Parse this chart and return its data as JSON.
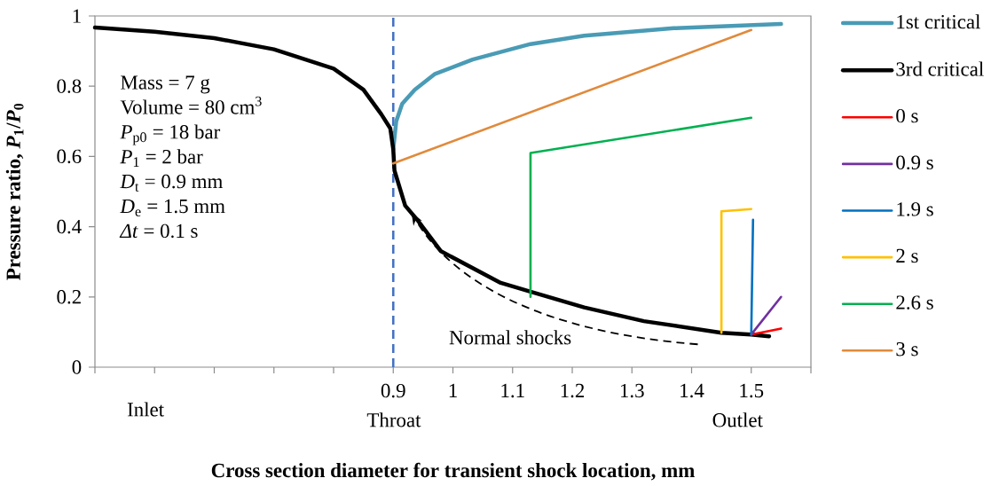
{
  "chart_data": {
    "type": "line",
    "xlabel": "Cross section diameter for transient shock location, mm",
    "ylabel": "Pressure ratio, *P*$_{1}$/*P*$_{0}$",
    "xlim": [
      0.4,
      1.6
    ],
    "ylim": [
      0,
      1
    ],
    "xticks": [
      {
        "value": 0.4,
        "label": null
      },
      {
        "value": 0.5,
        "label": null
      },
      {
        "value": 0.6,
        "label": null
      },
      {
        "value": 0.7,
        "label": null
      },
      {
        "value": 0.8,
        "label": null
      },
      0.9,
      1,
      1.1,
      1.2,
      1.3,
      1.4,
      1.5,
      {
        "value": 1.6,
        "label": null
      }
    ],
    "yticks": [
      0,
      0.2,
      0.4,
      0.6,
      0.8,
      1
    ],
    "legend": "right",
    "series": [
      {
        "name": "1st critical",
        "color": "#4a9bb5",
        "x": [
          0.9,
          0.905,
          0.915,
          0.936,
          0.97,
          1.033,
          1.13,
          1.22,
          1.37,
          1.55
        ],
        "values": [
          0.62,
          0.7,
          0.75,
          0.79,
          0.835,
          0.876,
          0.92,
          0.944,
          0.965,
          0.977
        ]
      },
      {
        "name": "3rd critical",
        "color": "#000000",
        "x": [
          0.4,
          0.5,
          0.6,
          0.7,
          0.8,
          0.85,
          0.88,
          0.895,
          0.9,
          0.902,
          0.92,
          0.94,
          0.98,
          1.08,
          1.13,
          1.22,
          1.32,
          1.45,
          1.5,
          1.53
        ],
        "values": [
          0.967,
          0.955,
          0.937,
          0.905,
          0.85,
          0.79,
          0.72,
          0.68,
          0.62,
          0.56,
          0.46,
          0.42,
          0.33,
          0.24,
          0.215,
          0.17,
          0.131,
          0.098,
          0.093,
          0.088
        ]
      },
      {
        "name": "0 s",
        "color": "#ff0000",
        "x": [
          1.5,
          1.55
        ],
        "values": [
          0.093,
          0.11
        ]
      },
      {
        "name": "0.9 s",
        "color": "#7030a0",
        "x": [
          1.5,
          1.55
        ],
        "values": [
          0.093,
          0.2
        ]
      },
      {
        "name": "1.9 s",
        "color": "#0070c0",
        "x": [
          1.5,
          1.503
        ],
        "values": [
          0.093,
          0.42
        ]
      },
      {
        "name": "2 s",
        "color": "#ffc000",
        "x": [
          1.45,
          1.45,
          1.5
        ],
        "values": [
          0.098,
          0.444,
          0.45
        ]
      },
      {
        "name": "2.6 s",
        "color": "#00b050",
        "x": [
          1.13,
          1.13,
          1.5
        ],
        "values": [
          0.2,
          0.61,
          0.71
        ]
      },
      {
        "name": "3 s",
        "color": "#e08a3c",
        "x": [
          0.9,
          1.5
        ],
        "values": [
          0.58,
          0.96
        ]
      }
    ],
    "ref_lines": [
      {
        "axis": "x",
        "value": 0.9,
        "color": "#4472c4",
        "line_style": "dashed"
      }
    ],
    "annotations": [
      "Mass = 7 g",
      "Volume = 80 cm$^{3}$",
      "*P*$_{p0}$ = 18 bar",
      "*P*$_{1}$ = 2 bar",
      "*D*$_{t}$ = 0.9 mm",
      "*D*$_{e}$ = 1.5 mm",
      "*Δt* = 0.1 s",
      "Normal shocks",
      "Inlet",
      "Throat",
      "Outlet"
    ]
  }
}
